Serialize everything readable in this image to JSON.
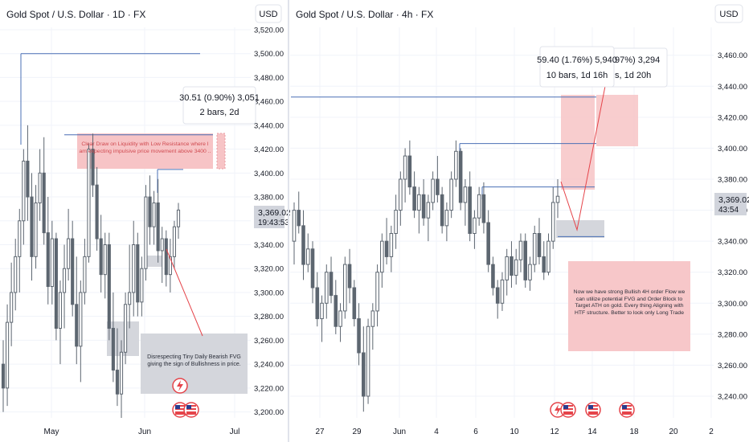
{
  "colors": {
    "candle": "#5d6670",
    "bg": "#ffffff",
    "grid": "#f0f3fa",
    "axis_text": "#131722",
    "level_line": "#4a6fb5",
    "zone_pink": "#f7c4c6",
    "zone_pink_border": "#e89aa0",
    "zone_gray": "#d4d6dc",
    "price_label_bg": "#d1d4dc",
    "event_red": "#e5444a",
    "event_flag_blue": "#2a3c8e"
  },
  "left_panel": {
    "title": "Gold Spot / U.S. Dollar · 1D · FX",
    "currency": "USD",
    "price_label": "3,369.02",
    "countdown": "19:43:53",
    "measure_top": "30.51 (0.90%) 3,051",
    "measure_bottom": "2 bars, 2d",
    "note_pink": "Clear Draw on Liquidity with Low Resistance where I am expecting impulsive price movement above 3400 ..",
    "note_gray": "Disrespecting Tiny Daily Bearish FVG giving the sign of Bullishness in price."
  },
  "right_panel": {
    "title": "Gold Spot / U.S. Dollar · 4h · FX",
    "currency": "USD",
    "price_label": "3,369.02",
    "countdown": "43:54",
    "measure_top": "59.40 (1.76%) 5,940",
    "measure_bottom": "10 bars, 1d 16h",
    "measure_hidden_top": "97%) 3,294",
    "measure_hidden_bottom": "s, 1d 20h",
    "note_pink": "Now we have strong Bullish 4H order Flow we can utilize potential FVG and Order Block to Target ATH on gold. Every thing Aligning with HTF structure. Better to look only Long Trade"
  },
  "chart_data": [
    {
      "type": "candlestick",
      "title": "Gold Spot / U.S. Dollar · 1D · FX",
      "ylim": [
        3195,
        3522
      ],
      "y_ticks": [
        "3,520.00",
        "3,500.00",
        "3,480.00",
        "3,460.00",
        "3,440.00",
        "3,420.00",
        "3,400.00",
        "3,380.00",
        "3,360.00",
        "3,340.00",
        "3,320.00",
        "3,300.00",
        "3,280.00",
        "3,260.00",
        "3,240.00",
        "3,220.00",
        "3,200.00"
      ],
      "y_tick_values": [
        3520,
        3500,
        3480,
        3460,
        3440,
        3420,
        3400,
        3380,
        3360,
        3340,
        3320,
        3300,
        3280,
        3260,
        3240,
        3220,
        3200
      ],
      "x_ticks": [
        "May",
        "Jun",
        "Jul"
      ],
      "levels": [
        3500,
        3432,
        3403
      ],
      "ohlc": [
        [
          3240,
          3260,
          3200,
          3220
        ],
        [
          3220,
          3290,
          3205,
          3275
        ],
        [
          3275,
          3325,
          3255,
          3300
        ],
        [
          3300,
          3345,
          3285,
          3330
        ],
        [
          3330,
          3370,
          3300,
          3360
        ],
        [
          3360,
          3420,
          3340,
          3410
        ],
        [
          3410,
          3440,
          3360,
          3380
        ],
        [
          3380,
          3400,
          3310,
          3330
        ],
        [
          3330,
          3390,
          3320,
          3375
        ],
        [
          3375,
          3420,
          3360,
          3400
        ],
        [
          3400,
          3430,
          3340,
          3350
        ],
        [
          3350,
          3380,
          3290,
          3305
        ],
        [
          3305,
          3360,
          3290,
          3345
        ],
        [
          3345,
          3350,
          3260,
          3270
        ],
        [
          3270,
          3310,
          3240,
          3300
        ],
        [
          3300,
          3340,
          3270,
          3320
        ],
        [
          3320,
          3370,
          3310,
          3345
        ],
        [
          3345,
          3360,
          3280,
          3290
        ],
        [
          3290,
          3330,
          3240,
          3255
        ],
        [
          3255,
          3310,
          3225,
          3300
        ],
        [
          3300,
          3345,
          3290,
          3330
        ],
        [
          3330,
          3425,
          3325,
          3420
        ],
        [
          3420,
          3433,
          3380,
          3390
        ],
        [
          3390,
          3405,
          3335,
          3345
        ],
        [
          3345,
          3365,
          3300,
          3315
        ],
        [
          3315,
          3350,
          3295,
          3340
        ],
        [
          3340,
          3350,
          3260,
          3270
        ],
        [
          3270,
          3300,
          3225,
          3235
        ],
        [
          3235,
          3270,
          3205,
          3215
        ],
        [
          3215,
          3260,
          3195,
          3250
        ],
        [
          3250,
          3300,
          3240,
          3290
        ],
        [
          3290,
          3340,
          3270,
          3300
        ],
        [
          3300,
          3360,
          3280,
          3340
        ],
        [
          3340,
          3350,
          3280,
          3292
        ],
        [
          3292,
          3330,
          3280,
          3320
        ],
        [
          3320,
          3390,
          3310,
          3380
        ],
        [
          3380,
          3398,
          3340,
          3355
        ],
        [
          3355,
          3385,
          3340,
          3375
        ],
        [
          3375,
          3395,
          3325,
          3335
        ],
        [
          3335,
          3355,
          3308,
          3345
        ],
        [
          3345,
          3352,
          3305,
          3315
        ],
        [
          3315,
          3345,
          3300,
          3330
        ],
        [
          3330,
          3360,
          3320,
          3355
        ],
        [
          3355,
          3375,
          3345,
          3369
        ]
      ]
    },
    {
      "type": "candlestick",
      "title": "Gold Spot / U.S. Dollar · 4h · FX",
      "ylim": [
        3226,
        3478
      ],
      "y_ticks": [
        "3,460.00",
        "3,440.00",
        "3,420.00",
        "3,400.00",
        "3,380.00",
        "3,360.00",
        "3,340.00",
        "3,320.00",
        "3,300.00",
        "3,280.00",
        "3,260.00",
        "3,240.00"
      ],
      "y_tick_values": [
        3460,
        3440,
        3420,
        3400,
        3380,
        3360,
        3340,
        3320,
        3300,
        3280,
        3260,
        3240
      ],
      "x_ticks": [
        "27",
        "29",
        "Jun",
        "4",
        "6",
        "10",
        "12",
        "14",
        "18",
        "20",
        "2"
      ],
      "levels": [
        3433,
        3403,
        3375,
        3343
      ],
      "ohlc": [
        [
          3340,
          3365,
          3325,
          3360
        ],
        [
          3360,
          3372,
          3345,
          3350
        ],
        [
          3350,
          3360,
          3315,
          3325
        ],
        [
          3325,
          3345,
          3320,
          3335
        ],
        [
          3335,
          3340,
          3300,
          3310
        ],
        [
          3310,
          3320,
          3285,
          3290
        ],
        [
          3290,
          3305,
          3275,
          3300
        ],
        [
          3300,
          3325,
          3290,
          3320
        ],
        [
          3320,
          3330,
          3300,
          3305
        ],
        [
          3305,
          3315,
          3280,
          3285
        ],
        [
          3285,
          3300,
          3275,
          3295
        ],
        [
          3295,
          3330,
          3290,
          3325
        ],
        [
          3325,
          3335,
          3300,
          3310
        ],
        [
          3310,
          3315,
          3285,
          3290
        ],
        [
          3290,
          3300,
          3260,
          3268
        ],
        [
          3268,
          3285,
          3230,
          3240
        ],
        [
          3240,
          3290,
          3235,
          3285
        ],
        [
          3285,
          3300,
          3270,
          3295
        ],
        [
          3295,
          3325,
          3285,
          3320
        ],
        [
          3320,
          3345,
          3310,
          3340
        ],
        [
          3340,
          3355,
          3325,
          3330
        ],
        [
          3330,
          3350,
          3320,
          3345
        ],
        [
          3345,
          3370,
          3335,
          3360
        ],
        [
          3360,
          3385,
          3350,
          3380
        ],
        [
          3380,
          3400,
          3365,
          3395
        ],
        [
          3395,
          3405,
          3370,
          3375
        ],
        [
          3375,
          3385,
          3355,
          3360
        ],
        [
          3360,
          3375,
          3345,
          3370
        ],
        [
          3370,
          3380,
          3350,
          3355
        ],
        [
          3355,
          3370,
          3340,
          3365
        ],
        [
          3365,
          3385,
          3360,
          3380
        ],
        [
          3380,
          3395,
          3365,
          3370
        ],
        [
          3370,
          3375,
          3345,
          3350
        ],
        [
          3350,
          3365,
          3340,
          3360
        ],
        [
          3360,
          3385,
          3355,
          3380
        ],
        [
          3380,
          3405,
          3375,
          3398
        ],
        [
          3398,
          3400,
          3360,
          3365
        ],
        [
          3365,
          3380,
          3350,
          3375
        ],
        [
          3375,
          3385,
          3340,
          3345
        ],
        [
          3345,
          3360,
          3335,
          3355
        ],
        [
          3355,
          3375,
          3350,
          3370
        ],
        [
          3370,
          3378,
          3345,
          3352
        ],
        [
          3352,
          3360,
          3320,
          3325
        ],
        [
          3325,
          3330,
          3305,
          3310
        ],
        [
          3310,
          3315,
          3290,
          3300
        ],
        [
          3300,
          3320,
          3295,
          3315
        ],
        [
          3315,
          3335,
          3305,
          3330
        ],
        [
          3330,
          3340,
          3310,
          3318
        ],
        [
          3318,
          3335,
          3312,
          3328
        ],
        [
          3328,
          3345,
          3320,
          3340
        ],
        [
          3340,
          3345,
          3310,
          3315
        ],
        [
          3315,
          3330,
          3308,
          3325
        ],
        [
          3325,
          3350,
          3320,
          3345
        ],
        [
          3345,
          3355,
          3325,
          3330
        ],
        [
          3330,
          3340,
          3315,
          3320
        ],
        [
          3320,
          3345,
          3318,
          3340
        ],
        [
          3340,
          3375,
          3335,
          3365
        ],
        [
          3365,
          3380,
          3355,
          3369
        ]
      ]
    }
  ]
}
